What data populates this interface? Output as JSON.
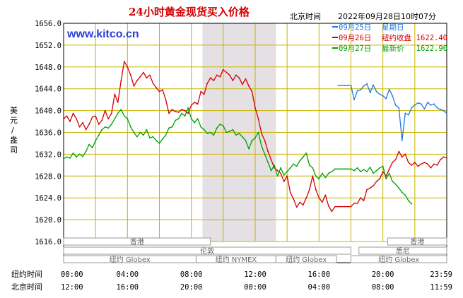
{
  "chart_data": {
    "type": "line",
    "title": "24小时黄金现货买入价格",
    "site": "www.kitco.cn",
    "location_label": "北京时间",
    "timestamp": "2022年09月28日10时07分",
    "ylabel": "美元/盎司",
    "ylim": [
      1616,
      1656
    ],
    "y_ticks": [
      "1656.0",
      "1652.0",
      "1648.0",
      "1644.0",
      "1640.0",
      "1636.0",
      "1632.0",
      "1628.0",
      "1624.0",
      "1620.0",
      "1616.0"
    ],
    "x_row_labels": [
      "纽约时间",
      "北京时间"
    ],
    "x_ticks_ny": [
      "00:00",
      "04:00",
      "08:00",
      "12:00",
      "16:00",
      "20:00",
      "23:59"
    ],
    "x_ticks_bj": [
      "12:00",
      "16:00",
      "20:00",
      "00:00",
      "04:00",
      "08:00",
      "11:59"
    ],
    "shaded_hours": [
      8.7,
      13.3
    ],
    "grid": true,
    "legend_position": "top-right",
    "series": [
      {
        "name": "09月25日",
        "note": "星期日",
        "color": "#1e78e6",
        "x": [
          17.2,
          17.4,
          17.6,
          17.8,
          18.0,
          18.2,
          18.4,
          18.6,
          18.8,
          19.0,
          19.2,
          19.4,
          19.6,
          19.8,
          20.0,
          20.2,
          20.4,
          20.6,
          20.8,
          21.0,
          21.2,
          21.4,
          21.6,
          21.8,
          22.0,
          22.2,
          22.4,
          22.6,
          22.8,
          23.0,
          23.2,
          23.4,
          23.6,
          23.8,
          24.0
        ],
        "values": [
          1644.6,
          1644.6,
          1644.6,
          1644.6,
          1644.6,
          1642.0,
          1643.6,
          1643.8,
          1644.5,
          1644.9,
          1643.3,
          1644.7,
          1643.5,
          1643.0,
          1642.7,
          1642.2,
          1643.9,
          1642.7,
          1641.0,
          1640.5,
          1634.5,
          1639.5,
          1639.2,
          1640.5,
          1641.0,
          1641.4,
          1641.2,
          1640.3,
          1641.5,
          1641.0,
          1641.2,
          1640.5,
          1640.2,
          1640.0,
          1639.5
        ]
      },
      {
        "name": "09月26日",
        "note": "纽约收盘",
        "value_label": "1622.40",
        "color": "#d40000",
        "x": [
          0.0,
          0.2,
          0.4,
          0.6,
          0.8,
          1.0,
          1.2,
          1.4,
          1.6,
          1.8,
          2.0,
          2.2,
          2.4,
          2.6,
          2.8,
          3.0,
          3.2,
          3.4,
          3.6,
          3.8,
          4.0,
          4.2,
          4.4,
          4.6,
          4.8,
          5.0,
          5.2,
          5.4,
          5.6,
          5.8,
          6.0,
          6.2,
          6.4,
          6.6,
          6.8,
          7.0,
          7.2,
          7.4,
          7.6,
          7.8,
          8.0,
          8.2,
          8.4,
          8.6,
          8.8,
          9.0,
          9.2,
          9.4,
          9.6,
          9.8,
          10.0,
          10.2,
          10.4,
          10.6,
          10.8,
          11.0,
          11.2,
          11.4,
          11.6,
          11.8,
          12.0,
          12.2,
          12.4,
          12.6,
          12.8,
          13.0,
          13.2,
          13.4,
          13.6,
          13.8,
          14.0,
          14.2,
          14.4,
          14.6,
          14.8,
          15.0,
          15.2,
          15.4,
          15.6,
          15.8,
          16.0,
          16.2,
          16.4,
          16.6,
          16.8,
          17.0,
          17.2,
          17.4,
          17.6,
          17.8,
          18.0,
          18.2,
          18.4,
          18.6,
          18.8,
          19.0,
          19.2,
          19.4,
          19.6,
          19.8,
          20.0,
          20.2,
          20.4,
          20.6,
          20.8,
          21.0,
          21.2,
          21.4,
          21.6,
          21.8,
          22.0,
          22.2,
          22.4,
          22.6,
          22.8,
          23.0,
          23.2,
          23.4,
          23.6,
          23.8,
          24.0
        ],
        "values": [
          1638.5,
          1639.0,
          1638.0,
          1639.5,
          1638.5,
          1637.0,
          1637.8,
          1636.5,
          1637.5,
          1638.8,
          1639.0,
          1637.5,
          1638.2,
          1640.0,
          1638.5,
          1639.5,
          1643.0,
          1641.5,
          1645.5,
          1649.0,
          1648.0,
          1646.5,
          1644.5,
          1645.5,
          1646.2,
          1647.0,
          1646.0,
          1646.5,
          1645.0,
          1644.2,
          1643.5,
          1643.8,
          1642.0,
          1639.5,
          1640.2,
          1639.8,
          1639.7,
          1640.2,
          1640.0,
          1639.5,
          1641.0,
          1641.5,
          1641.2,
          1643.5,
          1643.0,
          1645.0,
          1646.0,
          1645.5,
          1646.5,
          1646.2,
          1647.5,
          1647.0,
          1646.5,
          1645.5,
          1646.5,
          1646.0,
          1644.8,
          1645.8,
          1644.5,
          1643.5,
          1640.5,
          1638.5,
          1635.8,
          1634.5,
          1632.5,
          1631.0,
          1629.5,
          1629.0,
          1628.5,
          1627.0,
          1628.0,
          1625.0,
          1623.8,
          1622.3,
          1623.2,
          1622.7,
          1624.0,
          1625.5,
          1628.0,
          1625.5,
          1624.0,
          1623.2,
          1624.5,
          1622.5,
          1621.5,
          1622.4,
          1622.4,
          1622.4,
          1622.4,
          1622.4,
          1622.4,
          1623.0,
          1623.0,
          1624.0,
          1623.5,
          1625.5,
          1625.8,
          1626.2,
          1627.0,
          1627.5,
          1628.8,
          1628.0,
          1629.3,
          1630.5,
          1631.0,
          1632.5,
          1631.5,
          1632.0,
          1630.5,
          1630.0,
          1630.5,
          1629.8,
          1630.2,
          1630.5,
          1630.2,
          1629.5,
          1630.2,
          1630.0,
          1631.0,
          1631.5,
          1631.3
        ]
      },
      {
        "name": "09月27日",
        "note": "最新价",
        "value_label": "1622.90",
        "color": "#00a000",
        "x": [
          0.0,
          0.2,
          0.4,
          0.6,
          0.8,
          1.0,
          1.2,
          1.4,
          1.6,
          1.8,
          2.0,
          2.2,
          2.4,
          2.6,
          2.8,
          3.0,
          3.2,
          3.4,
          3.6,
          3.8,
          4.0,
          4.2,
          4.4,
          4.6,
          4.8,
          5.0,
          5.2,
          5.4,
          5.6,
          5.8,
          6.0,
          6.2,
          6.4,
          6.6,
          6.8,
          7.0,
          7.2,
          7.4,
          7.6,
          7.8,
          8.0,
          8.2,
          8.4,
          8.6,
          8.8,
          9.0,
          9.2,
          9.4,
          9.6,
          9.8,
          10.0,
          10.2,
          10.4,
          10.6,
          10.8,
          11.0,
          11.2,
          11.4,
          11.6,
          11.8,
          12.0,
          12.2,
          12.4,
          12.6,
          12.8,
          13.0,
          13.2,
          13.4,
          13.6,
          13.8,
          14.0,
          14.2,
          14.4,
          14.6,
          14.8,
          15.0,
          15.2,
          15.4,
          15.6,
          15.8,
          16.0,
          16.2,
          16.4,
          16.6,
          16.8,
          17.0,
          17.2,
          17.4,
          17.6,
          17.8,
          18.0,
          18.2,
          18.4,
          18.6,
          18.8,
          19.0,
          19.2,
          19.4,
          19.6,
          19.8,
          20.0,
          20.2,
          20.4,
          20.6,
          20.8,
          21.0,
          21.2,
          21.4,
          21.6,
          21.8
        ],
        "values": [
          1631.2,
          1631.5,
          1631.3,
          1632.2,
          1631.5,
          1632.0,
          1631.6,
          1632.5,
          1633.8,
          1633.2,
          1634.5,
          1635.5,
          1636.5,
          1637.0,
          1636.8,
          1637.5,
          1638.5,
          1639.5,
          1640.2,
          1639.0,
          1638.5,
          1637.0,
          1636.0,
          1635.2,
          1636.0,
          1635.5,
          1636.5,
          1635.0,
          1635.2,
          1634.5,
          1634.0,
          1634.8,
          1635.5,
          1636.8,
          1637.0,
          1638.2,
          1638.5,
          1639.5,
          1639.0,
          1640.5,
          1638.5,
          1637.8,
          1638.5,
          1637.0,
          1636.5,
          1635.8,
          1636.0,
          1635.5,
          1636.8,
          1637.5,
          1637.2,
          1636.0,
          1636.2,
          1636.5,
          1635.5,
          1635.8,
          1635.2,
          1634.5,
          1633.0,
          1634.5,
          1635.0,
          1636.0,
          1633.5,
          1632.0,
          1630.5,
          1629.0,
          1630.0,
          1628.0,
          1629.5,
          1628.2,
          1628.8,
          1629.5,
          1630.2,
          1629.8,
          1630.8,
          1631.5,
          1632.2,
          1630.0,
          1629.5,
          1628.0,
          1627.5,
          1628.5,
          1627.7,
          1628.5,
          1628.8,
          1629.3,
          1629.3,
          1629.3,
          1629.3,
          1629.3,
          1629.3,
          1629.0,
          1629.5,
          1628.8,
          1629.2,
          1628.8,
          1629.6,
          1628.5,
          1629.0,
          1629.5,
          1629.8,
          1627.5,
          1628.5,
          1627.0,
          1626.5,
          1625.8,
          1625.0,
          1624.5,
          1623.5,
          1622.9
        ]
      }
    ],
    "sessions": [
      {
        "label": "香港",
        "start": 0.0,
        "end": 9.2,
        "row": 0
      },
      {
        "label": "伦敦",
        "start": 0.0,
        "end": 18.0,
        "row": 1
      },
      {
        "label": "纽约 Globex",
        "start": 0.0,
        "end": 8.3,
        "row": 2
      },
      {
        "label": "纽约 NYMEX",
        "start": 8.3,
        "end": 13.3,
        "row": 2
      },
      {
        "label": "纽约 Globex",
        "start": 13.3,
        "end": 17.1,
        "row": 2
      },
      {
        "label": "香港",
        "start": 20.3,
        "end": 24.0,
        "row": 0
      },
      {
        "label": "悉尼",
        "start": 18.5,
        "end": 24.0,
        "row": 1
      },
      {
        "label": "纽约 Globex",
        "start": 18.0,
        "end": 24.0,
        "row": 2
      }
    ]
  }
}
